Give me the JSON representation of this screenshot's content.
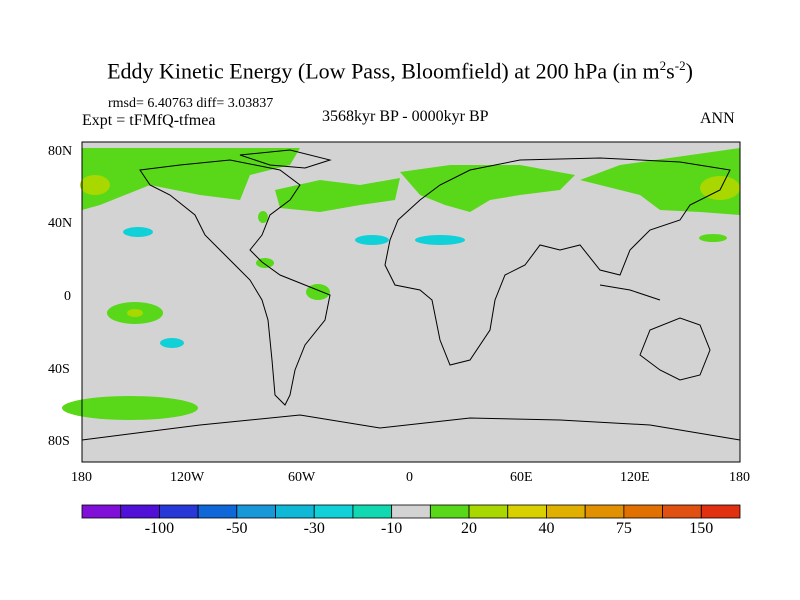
{
  "title": {
    "main": "Eddy Kinetic Energy (Low Pass, Bloomfield) at 200 hPa (in m",
    "sup1": "2",
    "mid": "s",
    "sup2": "-2",
    "end": ")"
  },
  "stats": "rmsd= 6.40763 diff= 3.03837",
  "experiment": "Expt = tFMfQ-tfmea",
  "period": "3568kyr BP - 0000kyr BP",
  "season": "ANN",
  "lat_labels": [
    "80N",
    "40N",
    "0",
    "40S",
    "80S"
  ],
  "lon_labels": [
    "180",
    "120W",
    "60W",
    "0",
    "60E",
    "120E",
    "180"
  ],
  "colorbar": {
    "colors": [
      "#8010d8",
      "#5010d8",
      "#2838d8",
      "#1068d8",
      "#1898d8",
      "#10b8d8",
      "#10d0d8",
      "#10d8b0",
      "#d3d3d3",
      "#58d818",
      "#a8d800",
      "#d8d000",
      "#e0b000",
      "#e09000",
      "#e07000",
      "#e05010",
      "#e03010"
    ],
    "labels": [
      "-100",
      "-50",
      "-30",
      "-10",
      "20",
      "40",
      "75",
      "150"
    ]
  },
  "colors": {
    "land_ocean": "#d3d3d3",
    "positive_low": "#58d818",
    "positive_mid": "#a8d800",
    "negative_low": "#10d0d8"
  }
}
